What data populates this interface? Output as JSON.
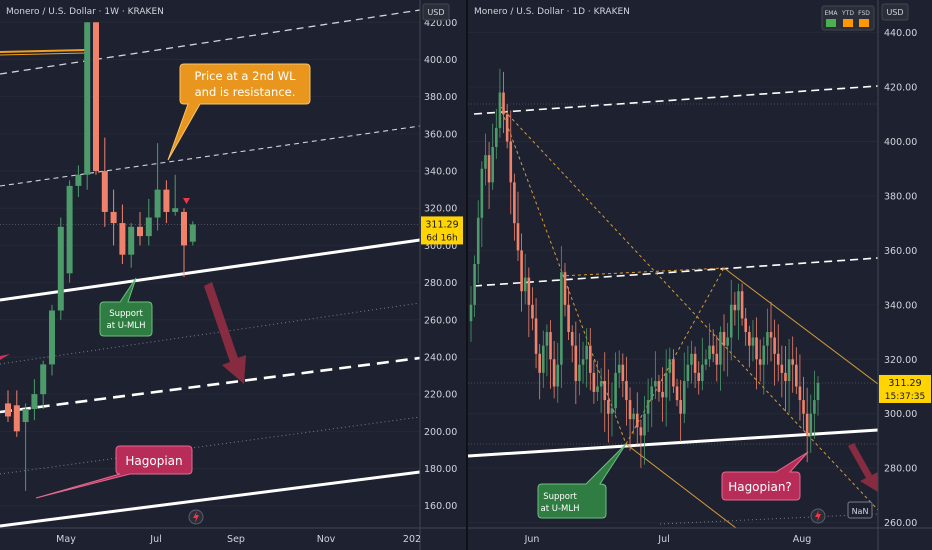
{
  "left_panel": {
    "title": "Monero / U.S. Dollar · 1W · KRAKEN",
    "currency": "USD",
    "price_tag": "311.29",
    "countdown": "6d 16h",
    "callout_resistance": [
      "Price at a 2nd WL",
      "and is resistance."
    ],
    "callout_support": [
      "Support",
      "at U-MLH"
    ],
    "callout_hagopian": "Hagopian",
    "colors": {
      "up": "#4d9a6a",
      "down": "#f0826c",
      "callout_orange": "#f0a020",
      "callout_green": "#3f8f4e",
      "callout_pink": "#c7335f",
      "price_tag": "#ffd400"
    }
  },
  "right_panel": {
    "title": "Monero / U.S. Dollar · 1D · KRAKEN",
    "currency": "USD",
    "indicator_badges": [
      "EMA",
      "YTD",
      "FSD"
    ],
    "price_tag": "311.29",
    "countdown": "15:37:35",
    "callout_support": [
      "Support",
      "at U-MLH"
    ],
    "callout_hagopian": "Hagopian?",
    "nan_label": "NaN"
  },
  "chart_data": [
    {
      "type": "candlestick",
      "title": "Monero / U.S. Dollar · 1W · KRAKEN",
      "y_ticks": [
        160,
        180,
        200,
        220,
        240,
        260,
        280,
        300,
        320,
        340,
        360,
        380,
        400,
        420
      ],
      "y_tick_labels": [
        "160.00",
        "180.00",
        "200.00",
        "220.00",
        "240.00",
        "260.00",
        "280.00",
        "300.00",
        "320.00",
        "340.00",
        "360.00",
        "380.00",
        "400.00",
        "420.00"
      ],
      "x_tick_labels": [
        "May",
        "Jul",
        "Sep",
        "Nov",
        "202"
      ],
      "ylim": [
        148,
        432
      ],
      "last_price": 311.29,
      "candles": [
        {
          "o": 215,
          "h": 222,
          "l": 205,
          "c": 208
        },
        {
          "o": 214,
          "h": 222,
          "l": 197,
          "c": 200
        },
        {
          "o": 205,
          "h": 215,
          "l": 168,
          "c": 212
        },
        {
          "o": 212,
          "h": 228,
          "l": 206,
          "c": 220
        },
        {
          "o": 220,
          "h": 238,
          "l": 212,
          "c": 236
        },
        {
          "o": 236,
          "h": 268,
          "l": 230,
          "c": 265
        },
        {
          "o": 265,
          "h": 315,
          "l": 260,
          "c": 310
        },
        {
          "o": 285,
          "h": 335,
          "l": 280,
          "c": 332
        },
        {
          "o": 332,
          "h": 343,
          "l": 326,
          "c": 338
        },
        {
          "o": 338,
          "h": 420,
          "l": 330,
          "c": 420
        },
        {
          "o": 420,
          "h": 420,
          "l": 338,
          "c": 340
        },
        {
          "o": 340,
          "h": 358,
          "l": 310,
          "c": 318
        },
        {
          "o": 318,
          "h": 330,
          "l": 300,
          "c": 312
        },
        {
          "o": 312,
          "h": 322,
          "l": 290,
          "c": 295
        },
        {
          "o": 295,
          "h": 312,
          "l": 288,
          "c": 310
        },
        {
          "o": 310,
          "h": 318,
          "l": 300,
          "c": 305
        },
        {
          "o": 305,
          "h": 325,
          "l": 300,
          "c": 315
        },
        {
          "o": 315,
          "h": 355,
          "l": 308,
          "c": 330
        },
        {
          "o": 330,
          "h": 335,
          "l": 312,
          "c": 318
        },
        {
          "o": 318,
          "h": 338,
          "l": 316,
          "c": 320
        },
        {
          "o": 318,
          "h": 320,
          "l": 283,
          "c": 300
        },
        {
          "o": 302,
          "h": 313,
          "l": 300,
          "c": 311.29
        }
      ]
    },
    {
      "type": "candlestick",
      "title": "Monero / U.S. Dollar · 1D · KRAKEN",
      "y_ticks": [
        260,
        280,
        300,
        320,
        340,
        360,
        380,
        400,
        420,
        440
      ],
      "y_tick_labels": [
        "260.00",
        "280.00",
        "300.00",
        "320.00",
        "340.00",
        "360.00",
        "380.00",
        "400.00",
        "420.00",
        "440.00"
      ],
      "x_tick_labels": [
        "Jun",
        "Jul",
        "Aug"
      ],
      "ylim": [
        258,
        452
      ],
      "last_price": 311.29,
      "closes": [
        340,
        355,
        372,
        390,
        395,
        385,
        398,
        405,
        418,
        410,
        400,
        385,
        370,
        360,
        345,
        350,
        340,
        335,
        322,
        315,
        325,
        330,
        320,
        310,
        318,
        352,
        340,
        330,
        325,
        312,
        318,
        320,
        325,
        315,
        308,
        310,
        312,
        305,
        300,
        302,
        315,
        318,
        312,
        305,
        298,
        300,
        295,
        292,
        300,
        305,
        310,
        312,
        308,
        306,
        315,
        320,
        310,
        305,
        300,
        312,
        318,
        322,
        315,
        312,
        318,
        320,
        325,
        322,
        318,
        330,
        325,
        328,
        340,
        338,
        345,
        335,
        330,
        325,
        328,
        320,
        318,
        325,
        330,
        328,
        322,
        318,
        315,
        312,
        320,
        318,
        310,
        305,
        300,
        292,
        300,
        305,
        311.29
      ]
    }
  ]
}
